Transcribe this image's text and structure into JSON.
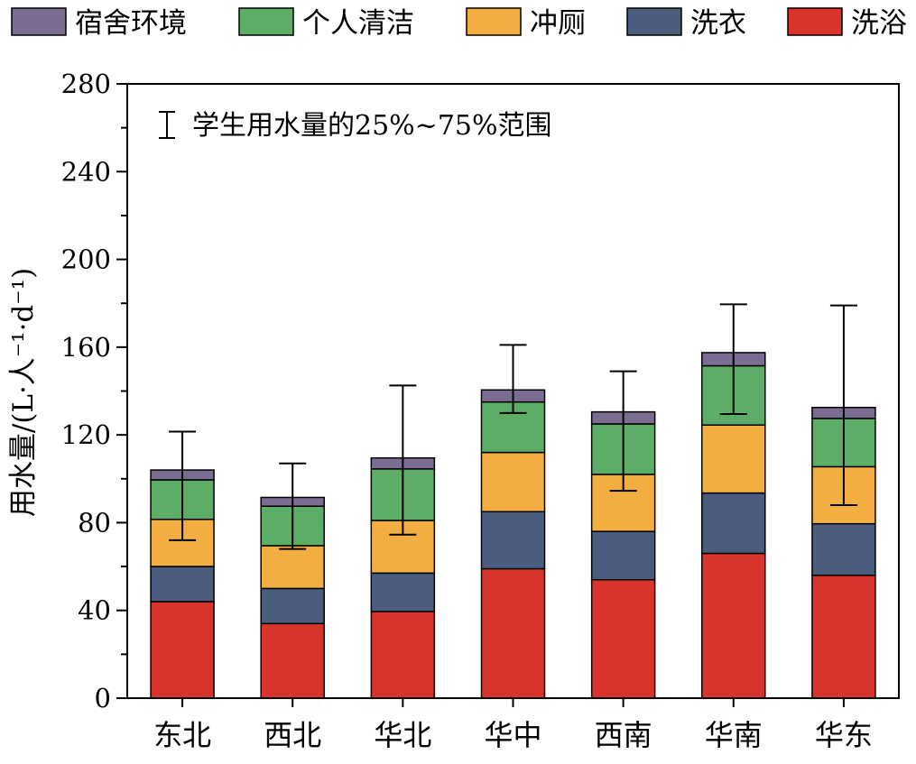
{
  "chart_data": {
    "type": "stacked-bar",
    "ylabel": "用水量/(L·人⁻¹·d⁻¹)",
    "ylim": [
      0,
      280
    ],
    "yticks": [
      0,
      40,
      80,
      120,
      160,
      200,
      240,
      280
    ],
    "categories": [
      "东北",
      "西北",
      "华北",
      "华中",
      "西南",
      "华南",
      "华东"
    ],
    "series": [
      {
        "name": "洗浴",
        "color": "#d9342b",
        "values": [
          44,
          34,
          39.5,
          59,
          54,
          66,
          56
        ]
      },
      {
        "name": "洗衣",
        "color": "#4b5c7f",
        "values": [
          16,
          16,
          17.5,
          26,
          22,
          27.5,
          23.5
        ]
      },
      {
        "name": "冲厕",
        "color": "#f2ae40",
        "values": [
          21.5,
          19.5,
          24,
          27,
          26,
          31,
          26
        ]
      },
      {
        "name": "个人清洁",
        "color": "#5cae66",
        "values": [
          18,
          18,
          23.5,
          23,
          23,
          27,
          22
        ]
      },
      {
        "name": "宿舍环境",
        "color": "#7b6c92",
        "values": [
          4.5,
          4,
          5,
          5.5,
          5.5,
          6,
          5
        ]
      }
    ],
    "legend_order": [
      "宿舍环境",
      "个人清洁",
      "冲厕",
      "洗衣",
      "洗浴"
    ],
    "error_bars": {
      "label": "学生用水量的25%~75%范围",
      "low": [
        72,
        68,
        74.5,
        130,
        94.5,
        129.5,
        88
      ],
      "high": [
        121.5,
        107,
        142.5,
        161,
        149,
        179.5,
        179
      ]
    },
    "legend_position": "top"
  }
}
